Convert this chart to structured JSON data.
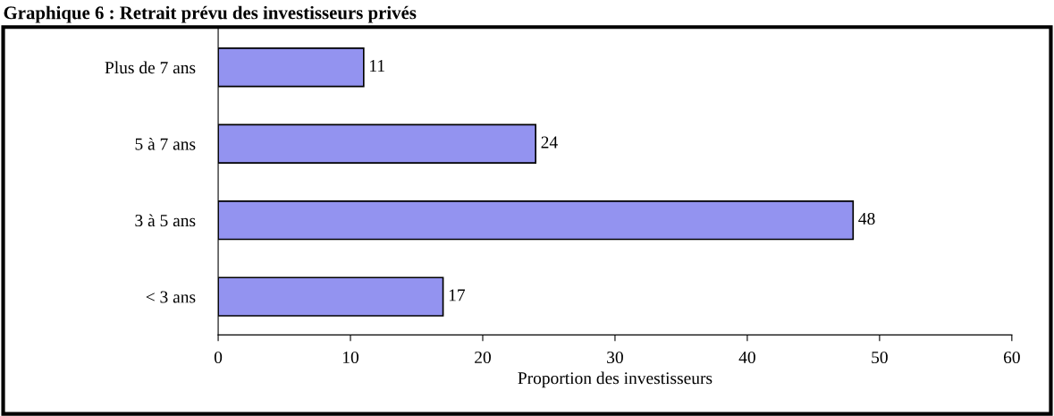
{
  "chart_data": {
    "type": "bar",
    "orientation": "horizontal",
    "title": "Graphique 6 : Retrait prévu des investisseurs privés",
    "xlabel": "Proportion des investisseurs",
    "categories": [
      "Plus de 7 ans",
      "5 à 7 ans",
      "3 à 5 ans",
      "< 3 ans"
    ],
    "values": [
      11,
      24,
      48,
      17
    ],
    "color": "#9393f0",
    "xlim": [
      0,
      60
    ],
    "xticks": [
      0,
      10,
      20,
      30,
      40,
      50,
      60
    ],
    "data_labels": true,
    "grid": false
  }
}
